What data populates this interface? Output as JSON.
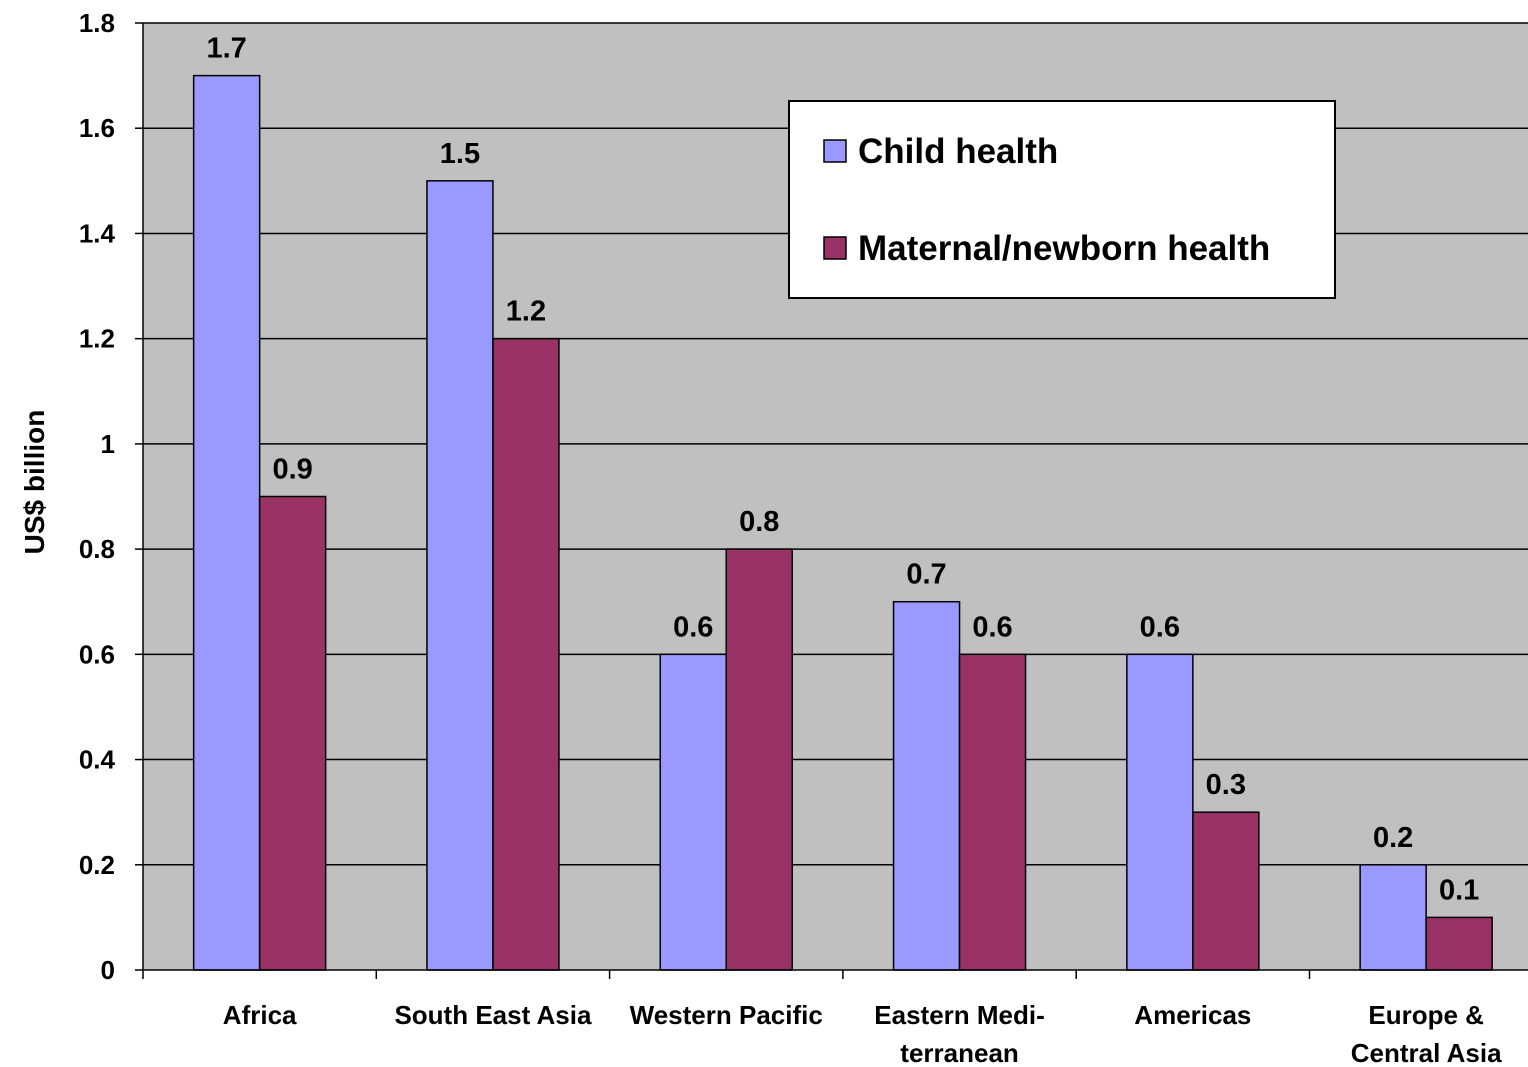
{
  "chart_data": {
    "type": "bar",
    "title": "",
    "xlabel": "",
    "ylabel": "US$ billion",
    "ylim": [
      0,
      1.8
    ],
    "yticks": [
      "0",
      "0.2",
      "0.4",
      "0.6",
      "0.8",
      "1",
      "1.2",
      "1.4",
      "1.6",
      "1.8"
    ],
    "grid": true,
    "legend_position": "top-right",
    "background_color": "#c0c0c0",
    "categories": [
      [
        "Africa"
      ],
      [
        "South East Asia"
      ],
      [
        "Western Pacific"
      ],
      [
        "Eastern Medi-",
        "terranean"
      ],
      [
        "Americas"
      ],
      [
        "Europe &",
        "Central Asia"
      ]
    ],
    "series": [
      {
        "name": "Child health",
        "color": "#9999ff",
        "values": [
          1.7,
          1.5,
          0.6,
          0.7,
          0.6,
          0.2
        ],
        "labels": [
          "1.7",
          "1.5",
          "0.6",
          "0.7",
          "0.6",
          "0.2"
        ]
      },
      {
        "name": "Maternal/newborn health",
        "color": "#993366",
        "values": [
          0.9,
          1.2,
          0.8,
          0.6,
          0.3,
          0.1
        ],
        "labels": [
          "0.9",
          "1.2",
          "0.8",
          "0.6",
          "0.3",
          "0.1"
        ]
      }
    ]
  }
}
